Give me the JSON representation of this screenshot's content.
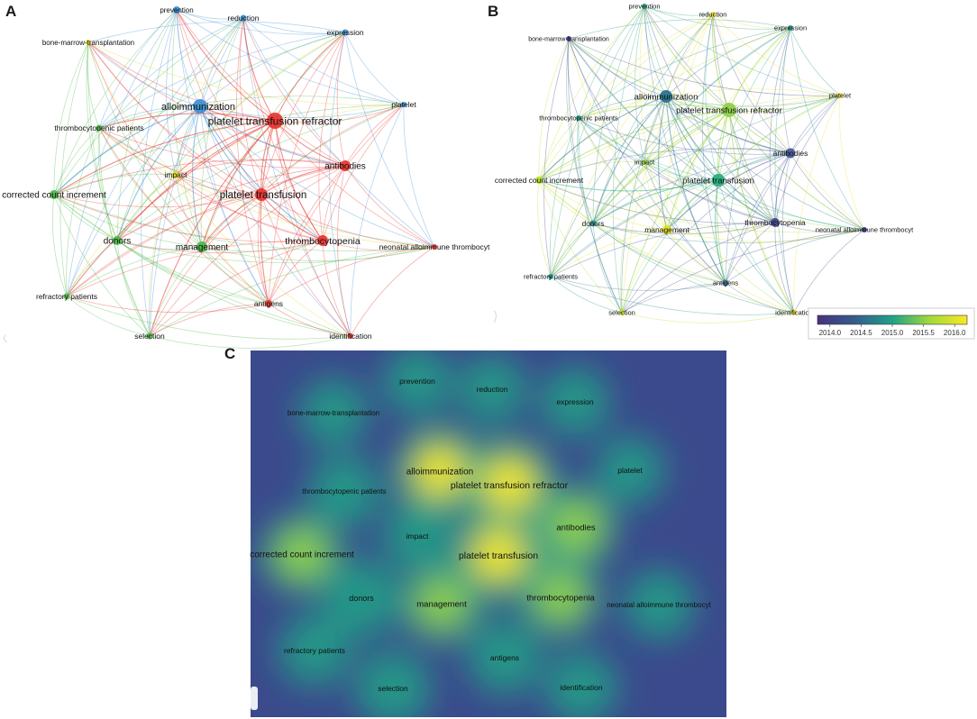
{
  "panels": {
    "a": "A",
    "b": "B",
    "c": "C"
  },
  "keywords": {
    "prevention": "prevention",
    "reduction": "reduction",
    "expression": "expression",
    "bmt": "bone-marrow-transplantation",
    "allo": "alloimmunization",
    "ptr": "platelet transfusion refractor",
    "platelet": "platelet",
    "thrombo_pat": "thrombocytopenic patients",
    "antibodies": "antibodies",
    "impact": "impact",
    "cci": "corrected count increment",
    "pt": "platelet transfusion",
    "donors": "donors",
    "management": "management",
    "thrombocytopenia": "thrombocytopenia",
    "nait": "neonatal alloimmune thrombocyt",
    "refractory": "refractory patients",
    "antigens": "antigens",
    "selection": "selection",
    "identification": "identification"
  },
  "cluster_colors": {
    "blue": "#3b8fd4",
    "red": "#e8332e",
    "green": "#4cb848",
    "yellow": "#e6d82a"
  },
  "colorbar": {
    "ticks": [
      "2014.0",
      "2014.5",
      "2015.0",
      "2015.5",
      "2016.0"
    ],
    "min": 2013.8,
    "max": 2016.2
  },
  "density_colors": {
    "low": "#3b4a8c",
    "mid": "#22a286",
    "high": "#f9e81e"
  }
}
